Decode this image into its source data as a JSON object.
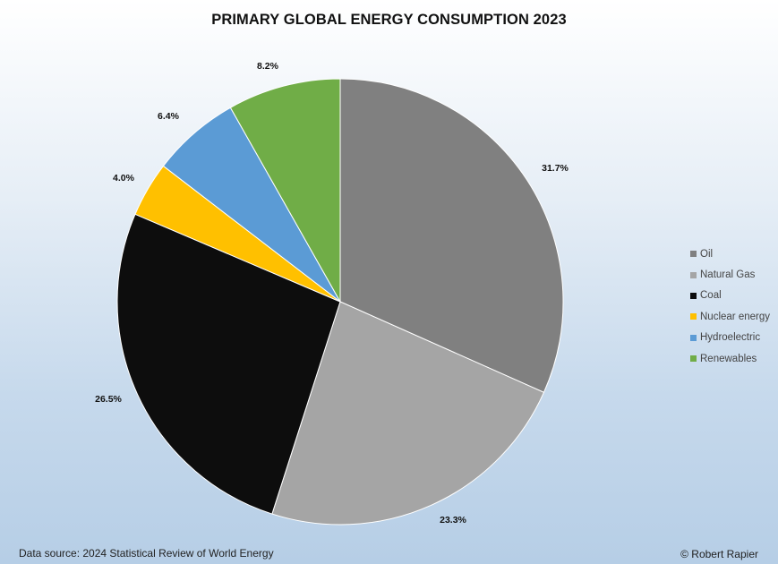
{
  "chart_data": {
    "type": "pie",
    "title": "PRIMARY GLOBAL ENERGY CONSUMPTION 2023",
    "categories": [
      "Oil",
      "Natural Gas",
      "Coal",
      "Nuclear energy",
      "Hydroelectric",
      "Renewables"
    ],
    "values": [
      31.7,
      23.3,
      26.5,
      4.0,
      6.4,
      8.2
    ],
    "labels": [
      "31.7%",
      "23.3%",
      "26.5%",
      "4.0%",
      "6.4%",
      "8.2%"
    ],
    "colors": [
      "#808080",
      "#a5a5a5",
      "#0d0d0d",
      "#ffc000",
      "#5b9bd5",
      "#70ad47"
    ],
    "legend_position": "right",
    "start_angle": "12 o'clock",
    "direction": "clockwise"
  },
  "footer": {
    "source": "Data source: 2024 Statistical Review of World Energy",
    "copyright": "© Robert Rapier"
  }
}
